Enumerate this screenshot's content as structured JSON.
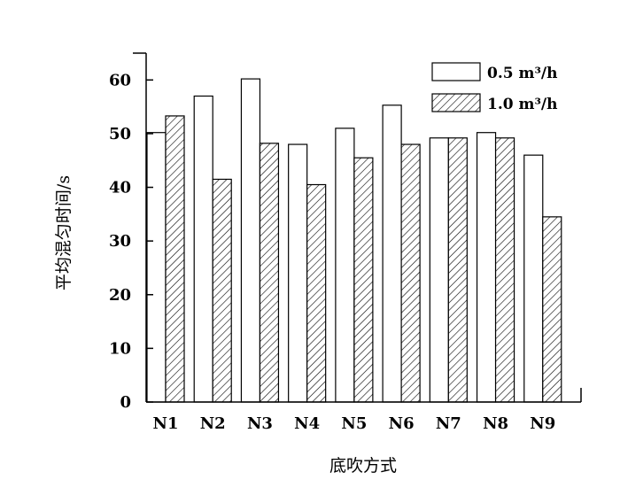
{
  "chart_data": {
    "type": "bar",
    "title": "",
    "xlabel": "底吹方式",
    "ylabel": "平均混匀时间/s",
    "categories": [
      "N1",
      "N2",
      "N3",
      "N4",
      "N5",
      "N6",
      "N7",
      "N8",
      "N9"
    ],
    "series": [
      {
        "name": "0.5 m³/h",
        "values": [
          50.2,
          57.0,
          60.2,
          48.0,
          51.0,
          55.3,
          49.2,
          50.2,
          46.0
        ],
        "fill": "#ffffff",
        "pattern": "none"
      },
      {
        "name": "1.0 m³/h",
        "values": [
          53.3,
          41.5,
          48.2,
          40.5,
          45.5,
          48.0,
          49.2,
          49.2,
          34.5
        ],
        "fill": "#ffffff",
        "pattern": "hatch"
      }
    ],
    "ylim": [
      0,
      65
    ],
    "yticks": [
      0,
      10,
      20,
      30,
      40,
      50,
      60
    ],
    "grid": false,
    "legend_position": "top-right"
  }
}
